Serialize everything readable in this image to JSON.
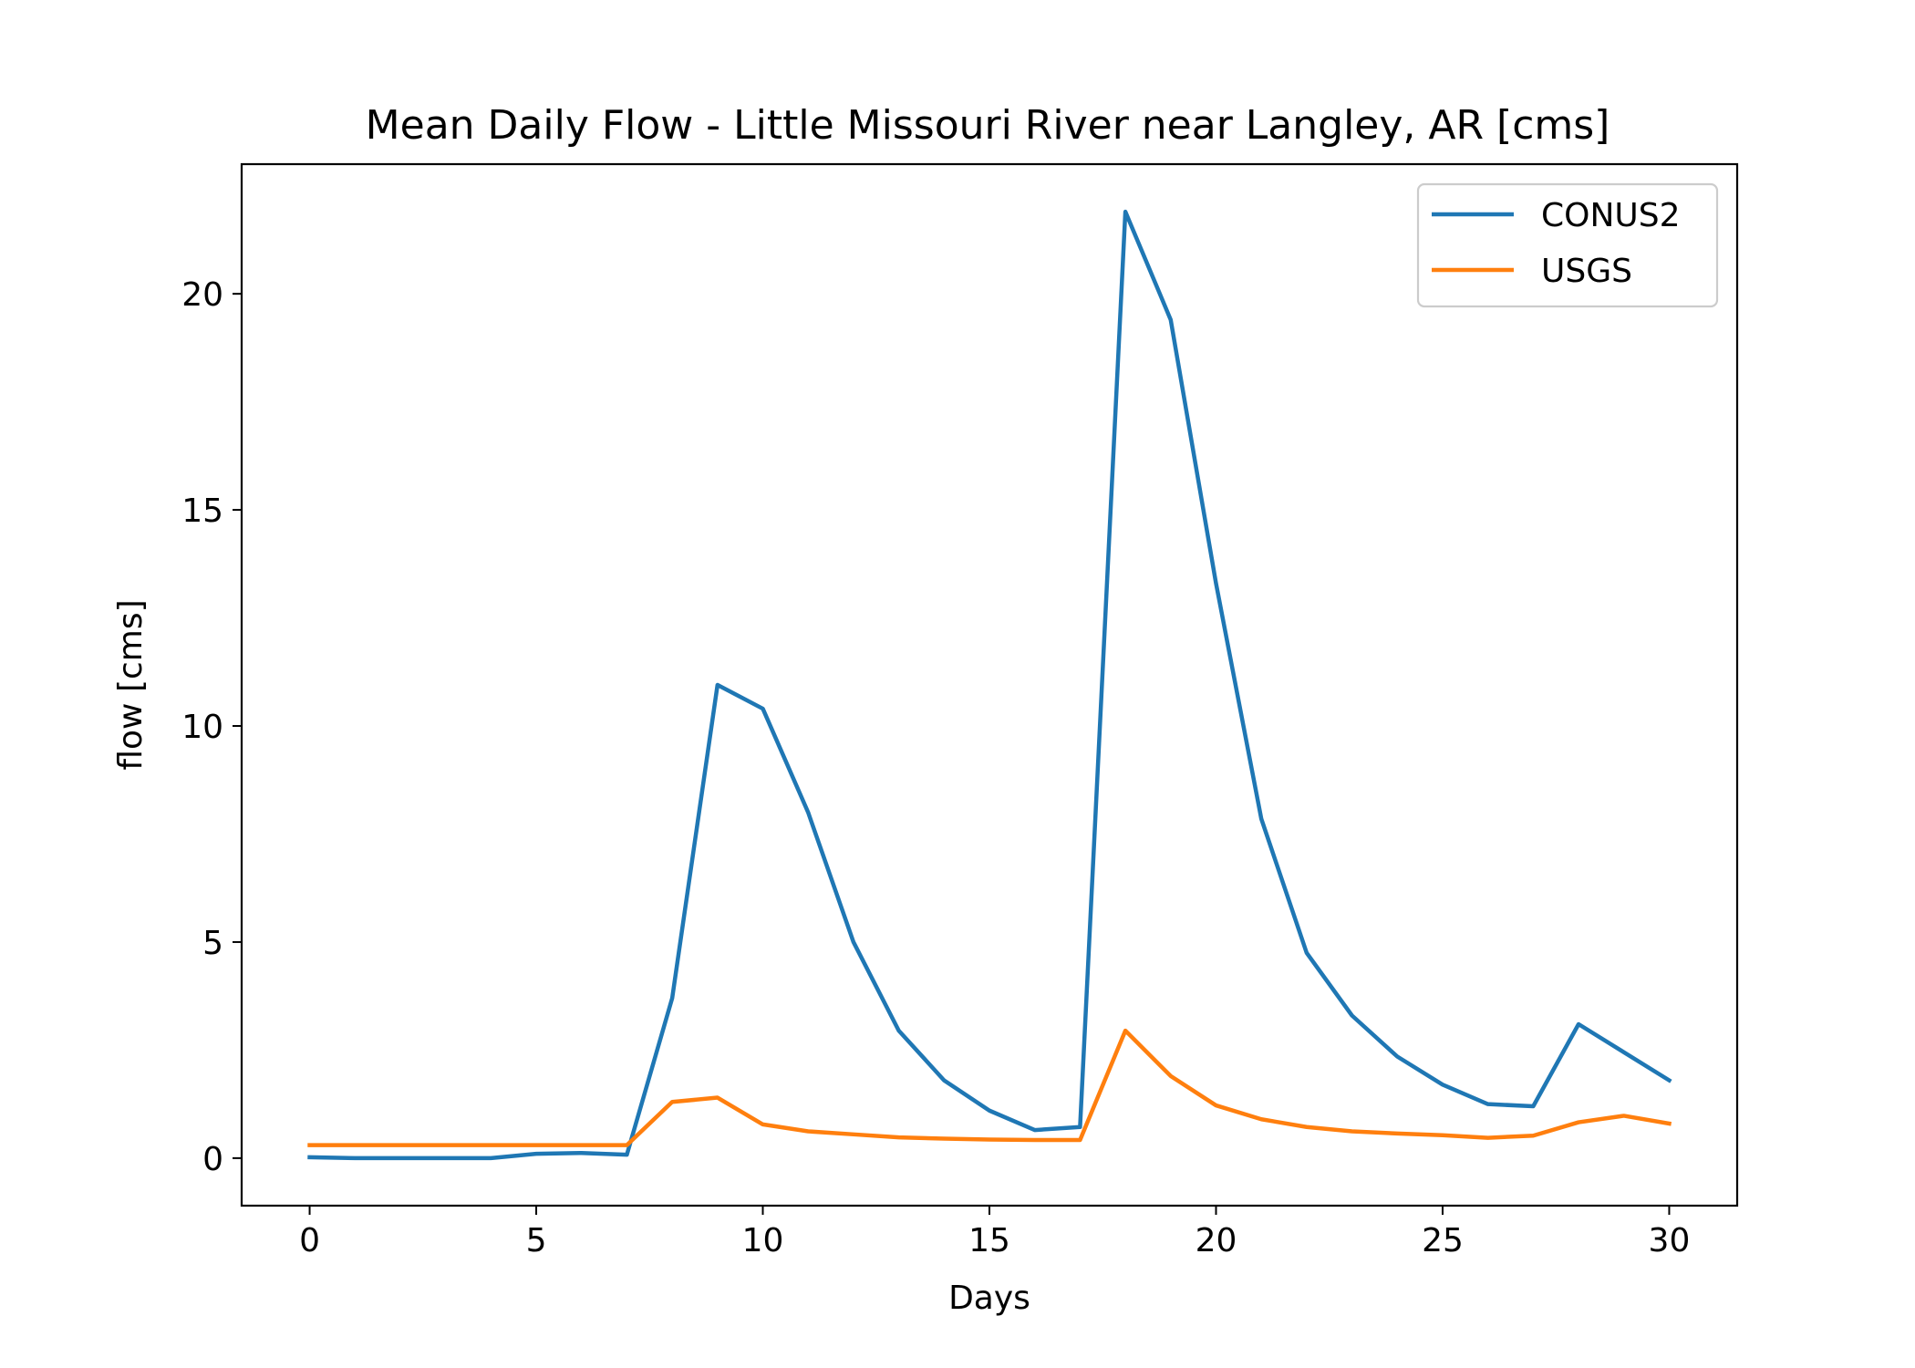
{
  "chart_data": {
    "type": "line",
    "title": "Mean Daily Flow - Little Missouri River near Langley, AR [cms]",
    "xlabel": "Days",
    "ylabel": "flow [cms]",
    "xlim": [
      -1.5,
      31.5
    ],
    "ylim": [
      -1.1,
      23.0
    ],
    "xticks": [
      0,
      5,
      10,
      15,
      20,
      25,
      30
    ],
    "yticks": [
      0,
      5,
      10,
      15,
      20
    ],
    "grid": false,
    "legend_position": "top-right",
    "x": [
      0,
      1,
      2,
      3,
      4,
      5,
      6,
      7,
      8,
      9,
      10,
      11,
      12,
      13,
      14,
      15,
      16,
      17,
      18,
      19,
      20,
      21,
      22,
      23,
      24,
      25,
      26,
      27,
      28,
      29,
      30
    ],
    "series": [
      {
        "name": "CONUS2",
        "color": "#1f77b4",
        "values": [
          0.02,
          0.0,
          0.0,
          0.0,
          0.0,
          0.1,
          0.12,
          0.08,
          3.7,
          10.95,
          10.4,
          8.0,
          5.0,
          2.95,
          1.8,
          1.1,
          0.65,
          0.72,
          21.9,
          19.4,
          13.3,
          7.85,
          4.75,
          3.3,
          2.35,
          1.7,
          1.25,
          1.2,
          3.1,
          2.45,
          1.8
        ]
      },
      {
        "name": "USGS",
        "color": "#ff7f0e",
        "values": [
          0.3,
          0.3,
          0.3,
          0.3,
          0.3,
          0.3,
          0.3,
          0.3,
          1.3,
          1.4,
          0.78,
          0.62,
          0.55,
          0.48,
          0.45,
          0.43,
          0.42,
          0.42,
          2.95,
          1.9,
          1.22,
          0.9,
          0.72,
          0.62,
          0.57,
          0.53,
          0.47,
          0.52,
          0.83,
          0.98,
          0.8
        ]
      }
    ]
  }
}
